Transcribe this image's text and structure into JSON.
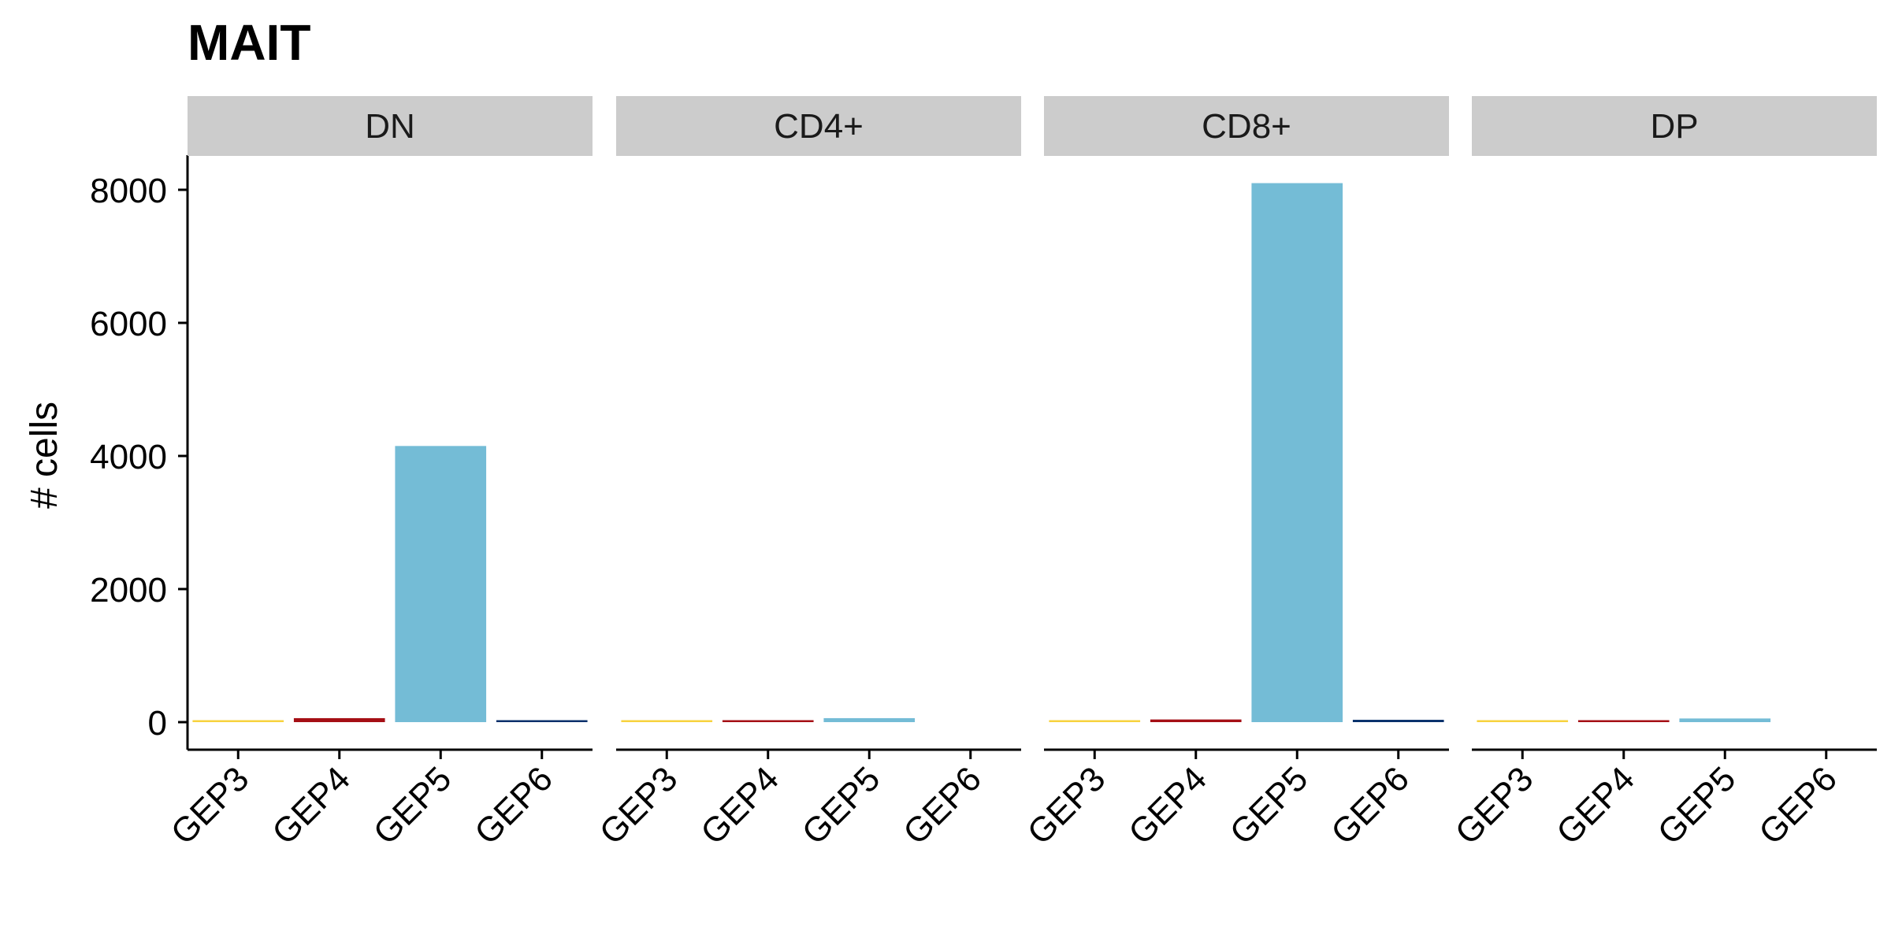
{
  "chart_data": {
    "type": "bar",
    "title": "MAIT",
    "ylabel": "# cells",
    "xlabel": "",
    "ylim": [
      -400,
      8500
    ],
    "yticks": [
      0,
      2000,
      4000,
      6000,
      8000
    ],
    "categories": [
      "GEP3",
      "GEP4",
      "GEP5",
      "GEP6"
    ],
    "colors": {
      "GEP3": "#F7D23E",
      "GEP4": "#A50F15",
      "GEP5": "#74BCD6",
      "GEP6": "#08306B"
    },
    "facets": [
      {
        "name": "DN",
        "values": [
          18,
          60,
          4150,
          15
        ]
      },
      {
        "name": "CD4+",
        "values": [
          3,
          8,
          60,
          0
        ]
      },
      {
        "name": "CD8+",
        "values": [
          25,
          40,
          8100,
          35
        ]
      },
      {
        "name": "DP",
        "values": [
          3,
          6,
          55,
          0
        ]
      }
    ]
  }
}
